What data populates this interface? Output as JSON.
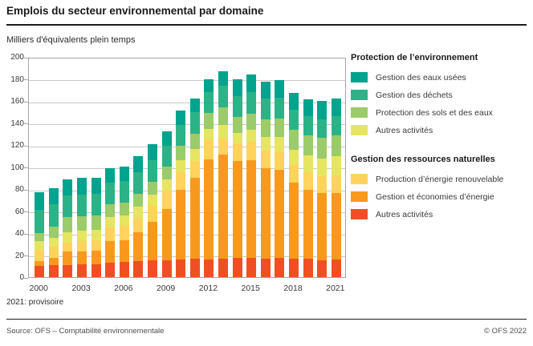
{
  "page": {
    "title": "Emplois du secteur environnemental par domaine",
    "unit_label": "Milliers d'équivalents plein temps",
    "note": "2021: provisoire",
    "source": "Source: OFS – Comptabilité environnementale",
    "copyright": "© OFS 2022"
  },
  "legend": {
    "groups": [
      {
        "title": "Protection de l’environnement",
        "items": [
          {
            "label": "Gestion des eaux usées",
            "color": "#00a38d"
          },
          {
            "label": "Gestion des déchets",
            "color": "#2bb387"
          },
          {
            "label": "Protection des sols et des eaux",
            "color": "#9ccb69"
          },
          {
            "label": "Autres activités",
            "color": "#e6e562"
          }
        ]
      },
      {
        "title": "Gestion des ressources naturelles",
        "items": [
          {
            "label": "Production d’énergie renouvelable",
            "color": "#ffd35c"
          },
          {
            "label": "Gestion et économies d’énergie",
            "color": "#f8991d"
          },
          {
            "label": "Autres activités",
            "color": "#f04f23"
          }
        ]
      }
    ]
  },
  "chart_data": {
    "type": "bar",
    "stacked": true,
    "title": "Emplois du secteur environnemental par domaine",
    "ylabel": "Milliers d'équivalents plein temps",
    "xlabel": "",
    "ylim": [
      0,
      200
    ],
    "ytick_step": 20,
    "yticks": [
      0,
      20,
      40,
      60,
      80,
      100,
      120,
      140,
      160,
      180,
      200
    ],
    "grid": true,
    "legend_position": "right",
    "stack_order": "bottom-to-top",
    "categories": [
      "2000",
      "2001",
      "2002",
      "2003",
      "2004",
      "2005",
      "2006",
      "2007",
      "2008",
      "2009",
      "2010",
      "2011",
      "2012",
      "2013",
      "2014",
      "2015",
      "2016",
      "2017",
      "2018",
      "2019",
      "2020",
      "2021"
    ],
    "xtick_labels": [
      "2000",
      "2003",
      "2006",
      "2009",
      "2012",
      "2015",
      "2018",
      "2021"
    ],
    "series": [
      {
        "name": "Autres activités (gestion des ressources naturelles)",
        "color": "#f04f23",
        "values": [
          10,
          11,
          11,
          11.5,
          11.5,
          13,
          14,
          14.5,
          15,
          15,
          16,
          16.5,
          16,
          17,
          17.5,
          17.5,
          17,
          17.5,
          17,
          16.5,
          15.5,
          16
        ]
      },
      {
        "name": "Gestion et économies d’énergie",
        "color": "#f8991d",
        "values": [
          4.5,
          6.5,
          12,
          12,
          12.5,
          19.5,
          19.5,
          26,
          35.5,
          47,
          63,
          73.5,
          91,
          94.5,
          88,
          89,
          82,
          80,
          69,
          63,
          61,
          60.5
        ]
      },
      {
        "name": "Production d’énergie renouvelable",
        "color": "#ffd35c",
        "values": [
          10.5,
          10.5,
          8.5,
          9,
          9.5,
          12.5,
          13,
          13.5,
          14.5,
          16.5,
          16,
          15.5,
          18,
          14.5,
          16,
          16.5,
          16,
          16.5,
          16,
          15.5,
          15.5,
          16
        ]
      },
      {
        "name": "Autres activités (protection de l’environnement)",
        "color": "#e6e562",
        "values": [
          7.5,
          7.5,
          9.5,
          9.5,
          9.5,
          9.5,
          9.5,
          10,
          10,
          10.5,
          11,
          11,
          9.5,
          12,
          9.5,
          10.5,
          12,
          13,
          14,
          15.5,
          16,
          17
        ]
      },
      {
        "name": "Protection des sols et des eaux",
        "color": "#9ccb69",
        "values": [
          7.5,
          10,
          13.5,
          13.5,
          13,
          12,
          12,
          11.5,
          11.5,
          11.5,
          13,
          13.5,
          14.5,
          16.5,
          14.5,
          15,
          16,
          17,
          17.5,
          18,
          18.5,
          19.5
        ]
      },
      {
        "name": "Gestion des déchets",
        "color": "#2bb387",
        "values": [
          21,
          20.5,
          19.5,
          19.5,
          19.5,
          19,
          19,
          19.5,
          19.5,
          19,
          19,
          19.5,
          19,
          19.5,
          19,
          19.5,
          19,
          19,
          18.5,
          17.5,
          17,
          17
        ]
      },
      {
        "name": "Gestion des eaux usées",
        "color": "#00a38d",
        "values": [
          16,
          14.5,
          15,
          15,
          14.5,
          13.5,
          13.5,
          15,
          14.5,
          13,
          13,
          13,
          12,
          13,
          15.2,
          15.8,
          15.7,
          15.8,
          15.5,
          15.5,
          16.3,
          16
        ]
      }
    ]
  }
}
